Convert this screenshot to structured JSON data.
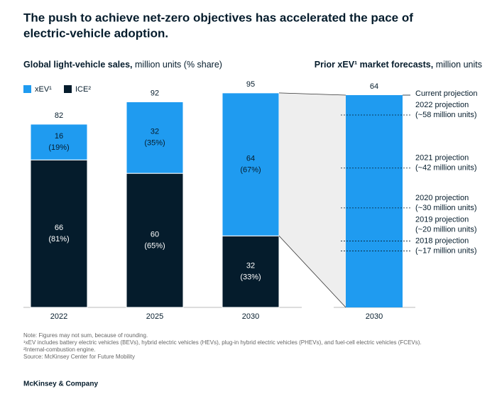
{
  "title": [
    "The push to achieve net-zero objectives has accelerated the pace of",
    "electric-vehicle adoption."
  ],
  "chart_data": [
    {
      "type": "stacked_bar",
      "title_bold": "Global light-vehicle sales,",
      "title_rest": " million units (% share)",
      "categories": [
        "2022",
        "2025",
        "2030"
      ],
      "series": [
        {
          "name": "xEV¹",
          "color": "#1f9bf0",
          "label_color": "#051c2c",
          "values": [
            16,
            32,
            64
          ],
          "share_labels": [
            "(19%)",
            "(35%)",
            "(67%)"
          ]
        },
        {
          "name": "ICE²",
          "color": "#051c2c",
          "label_color": "#ffffff",
          "values": [
            66,
            60,
            32
          ],
          "share_labels": [
            "(81%)",
            "(65%)",
            "(33%)"
          ]
        }
      ],
      "totals": [
        82,
        92,
        95
      ]
    },
    {
      "type": "forecast_bar",
      "title_bold": "Prior xEV¹ market forecasts,",
      "title_rest": " million units",
      "categories": [
        "2030"
      ],
      "values": [
        64
      ],
      "color": "#1f9bf0",
      "projections": [
        {
          "label": "Current projection",
          "value": 64
        },
        {
          "label": "2022 projection",
          "detail": "(~58 million units)",
          "value": 58
        },
        {
          "label": "2021 projection",
          "detail": "(~42 million units)",
          "value": 42
        },
        {
          "label": "2020 projection",
          "detail": "(~30 million units)",
          "value": 30
        },
        {
          "label": "2019 projection",
          "detail": "(~20 million units)",
          "value": 20
        },
        {
          "label": "2018 projection",
          "detail": "(~17 million units)",
          "value": 17
        }
      ]
    }
  ],
  "notes": [
    "Note: Figures may not sum, because of rounding.",
    "¹xEV includes battery electric vehicles (BEVs), hybrid electric vehicles (HEVs), plug-in hybrid electric vehicles (PHEVs), and fuel-cell electric vehicles (FCEVs).",
    "²Internal-combustion engine.",
    "Source: McKinsey Center for Future Mobility"
  ],
  "footer": "McKinsey & Company"
}
